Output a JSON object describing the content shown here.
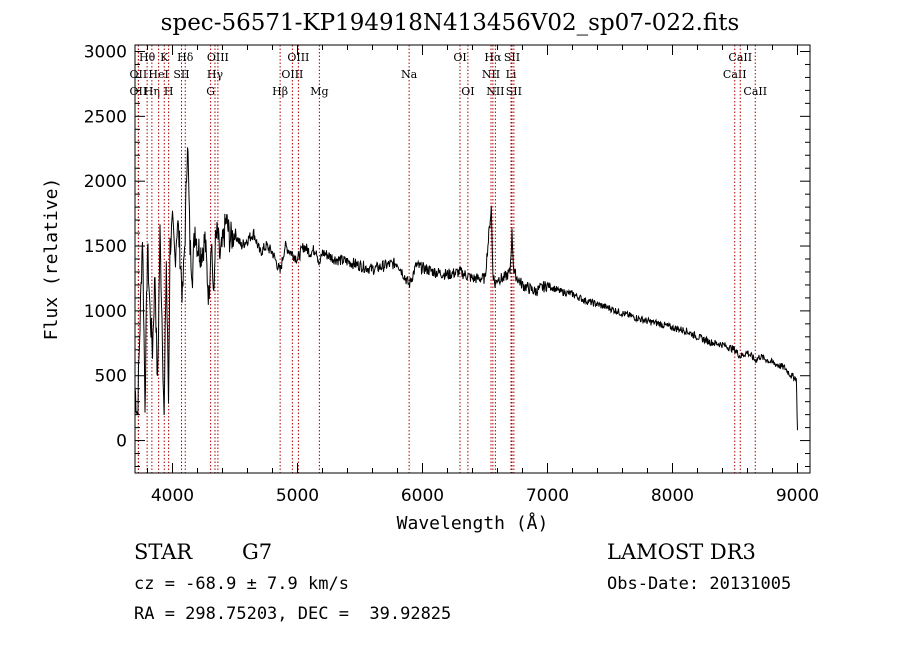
{
  "chart_data": {
    "type": "line",
    "title": "spec-56571-KP194918N413456V02_sp07-022.fits",
    "xlabel": "Wavelength (Å)",
    "ylabel": "Flux (relative)",
    "xlim": [
      3700,
      9100
    ],
    "ylim": [
      -250,
      3050
    ],
    "xticks": [
      4000,
      5000,
      6000,
      7000,
      8000,
      9000
    ],
    "yticks": [
      0,
      500,
      1000,
      1500,
      2000,
      2500,
      3000
    ],
    "series": [
      {
        "name": "flux",
        "x": [
          3700,
          3720,
          3740,
          3760,
          3780,
          3800,
          3820,
          3840,
          3860,
          3880,
          3900,
          3920,
          3933,
          3950,
          3968,
          3980,
          4000,
          4020,
          4040,
          4060,
          4080,
          4101,
          4120,
          4140,
          4160,
          4180,
          4200,
          4230,
          4260,
          4290,
          4310,
          4330,
          4340,
          4360,
          4380,
          4400,
          4430,
          4460,
          4500,
          4550,
          4600,
          4650,
          4700,
          4750,
          4800,
          4861,
          4900,
          4950,
          5000,
          5050,
          5100,
          5150,
          5175,
          5200,
          5300,
          5400,
          5500,
          5600,
          5700,
          5800,
          5893,
          5950,
          6000,
          6100,
          6200,
          6300,
          6400,
          6500,
          6550,
          6563,
          6580,
          6600,
          6650,
          6700,
          6716,
          6731,
          6760,
          6800,
          6900,
          7000,
          7100,
          7200,
          7300,
          7400,
          7500,
          7600,
          7700,
          7800,
          7900,
          8000,
          8100,
          8200,
          8300,
          8400,
          8498,
          8542,
          8600,
          8662,
          8700,
          8800,
          8900,
          8950,
          8990,
          9000
        ],
        "y": [
          400,
          200,
          900,
          1600,
          300,
          1500,
          1000,
          700,
          1300,
          400,
          1600,
          800,
          150,
          1400,
          300,
          1500,
          1650,
          1400,
          1700,
          1450,
          1100,
          1600,
          2350,
          1500,
          1300,
          1650,
          1500,
          1450,
          1550,
          1100,
          1600,
          1050,
          1500,
          1600,
          1400,
          1500,
          1700,
          1550,
          1600,
          1500,
          1550,
          1600,
          1450,
          1500,
          1450,
          1300,
          1500,
          1450,
          1400,
          1500,
          1450,
          1480,
          1350,
          1450,
          1400,
          1380,
          1350,
          1320,
          1350,
          1370,
          1200,
          1350,
          1330,
          1300,
          1280,
          1300,
          1250,
          1250,
          1800,
          1300,
          1200,
          1250,
          1250,
          1300,
          1600,
          1300,
          1250,
          1200,
          1150,
          1200,
          1150,
          1130,
          1080,
          1050,
          1020,
          980,
          950,
          920,
          900,
          870,
          850,
          800,
          760,
          740,
          700,
          650,
          680,
          620,
          650,
          600,
          560,
          500,
          480,
          80
        ]
      }
    ],
    "lines": [
      {
        "name": "OII",
        "wl": 3727,
        "row": 2
      },
      {
        "name": "Hθ",
        "wl": 3797,
        "row": 1
      },
      {
        "name": "OII",
        "wl": 3727,
        "row": 3
      },
      {
        "name": "Hη",
        "wl": 3835,
        "row": 3
      },
      {
        "name": "HeI",
        "wl": 3889,
        "row": 2
      },
      {
        "name": "K",
        "wl": 3934,
        "row": 1
      },
      {
        "name": "SII",
        "wl": 4072,
        "row": 2
      },
      {
        "name": "H",
        "wl": 3969,
        "row": 3
      },
      {
        "name": "Hδ",
        "wl": 4102,
        "row": 1
      },
      {
        "name": "Hγ",
        "wl": 4340,
        "row": 2
      },
      {
        "name": "G",
        "wl": 4305,
        "row": 3
      },
      {
        "name": "OIII",
        "wl": 4363,
        "row": 1
      },
      {
        "name": "Hβ",
        "wl": 4861,
        "row": 3
      },
      {
        "name": "OIII",
        "wl": 4959,
        "row": 2
      },
      {
        "name": "OIII",
        "wl": 5007,
        "row": 1
      },
      {
        "name": "Mg",
        "wl": 5175,
        "row": 3
      },
      {
        "name": "Na",
        "wl": 5893,
        "row": 2
      },
      {
        "name": "OI",
        "wl": 6300,
        "row": 1
      },
      {
        "name": "OI",
        "wl": 6363,
        "row": 3
      },
      {
        "name": "NII",
        "wl": 6548,
        "row": 2
      },
      {
        "name": "Hα",
        "wl": 6563,
        "row": 1
      },
      {
        "name": "NII",
        "wl": 6583,
        "row": 3
      },
      {
        "name": "Li",
        "wl": 6708,
        "row": 2
      },
      {
        "name": "SII",
        "wl": 6716,
        "row": 1
      },
      {
        "name": "SII",
        "wl": 6731,
        "row": 3
      },
      {
        "name": "CaII",
        "wl": 8498,
        "row": 2
      },
      {
        "name": "CaII",
        "wl": 8542,
        "row": 1
      },
      {
        "name": "CaII",
        "wl": 8662,
        "row": 3
      }
    ]
  },
  "info": {
    "class": "STAR",
    "subclass": "G7",
    "survey": "LAMOST DR3",
    "cz": "cz = -68.9 ± 7.9 km/s",
    "obsdate": "Obs-Date: 20131005",
    "radec": "RA = 298.75203, DEC =  39.92825"
  },
  "colors": {
    "axis": "#000000",
    "spectrum": "#000000",
    "lines": "#b00000"
  }
}
